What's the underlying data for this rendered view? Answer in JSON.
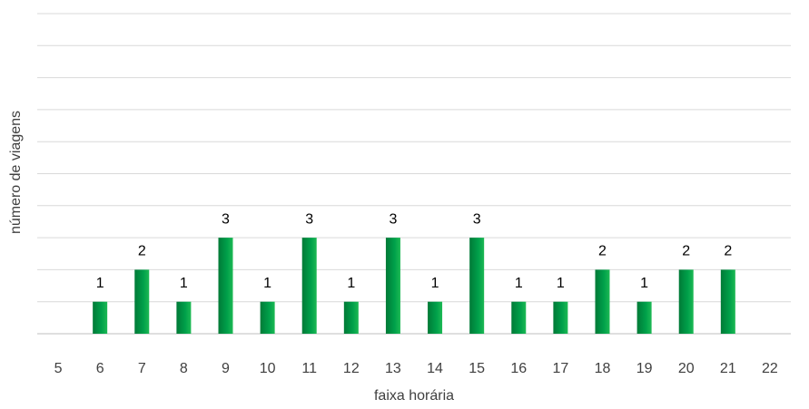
{
  "chart_data": {
    "type": "bar",
    "x_label": "faixa horária",
    "y_label": "número de viagens",
    "categories": [
      "5",
      "6",
      "7",
      "8",
      "9",
      "10",
      "11",
      "12",
      "13",
      "14",
      "15",
      "16",
      "17",
      "18",
      "19",
      "20",
      "21",
      "22"
    ],
    "values": [
      null,
      1,
      2,
      1,
      3,
      1,
      3,
      1,
      3,
      1,
      3,
      1,
      1,
      2,
      1,
      2,
      2,
      null
    ],
    "color": "#00a04a",
    "ylim": [
      0,
      10
    ],
    "yticks": [
      0,
      1,
      2,
      3,
      4,
      5,
      6,
      7,
      8,
      9,
      10
    ],
    "ytick_labels_shown": false,
    "grid": true,
    "data_labels": true
  }
}
